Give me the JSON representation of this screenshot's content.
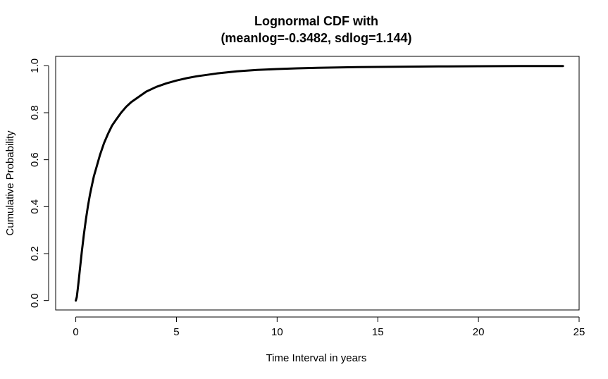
{
  "chart_data": {
    "type": "line",
    "title": "Lognormal CDF with",
    "subtitle": "(meanlog=-0.3482, sdlog=1.144)",
    "xlabel": "Time Interval in years",
    "ylabel": "Cumulative Probability",
    "xlim": [
      -1,
      25
    ],
    "ylim": [
      -0.04,
      1.04
    ],
    "x_ticks": [
      0,
      5,
      10,
      15,
      20,
      25
    ],
    "x_tick_labels": [
      "0",
      "5",
      "10",
      "15",
      "20",
      "25"
    ],
    "y_ticks": [
      0.0,
      0.2,
      0.4,
      0.6,
      0.8,
      1.0
    ],
    "y_tick_labels": [
      "0.0",
      "0.2",
      "0.4",
      "0.6",
      "0.8",
      "1.0"
    ],
    "grid": false,
    "series": [
      {
        "color": "#000000",
        "x": [
          0,
          0.05,
          0.1,
          0.15,
          0.2,
          0.3,
          0.4,
          0.5,
          0.6,
          0.7,
          0.8,
          0.9,
          1.0,
          1.2,
          1.4,
          1.6,
          1.8,
          2.0,
          2.25,
          2.5,
          2.75,
          3.0,
          3.5,
          4.0,
          4.5,
          5.0,
          5.5,
          6.0,
          7.0,
          8.0,
          9.0,
          10.0,
          11.0,
          12.0,
          13.0,
          14.0,
          16.0,
          18.0,
          20.0,
          22.0,
          24.2
        ],
        "y": [
          0.0,
          0.015,
          0.05,
          0.09,
          0.13,
          0.21,
          0.28,
          0.345,
          0.4,
          0.45,
          0.49,
          0.53,
          0.56,
          0.62,
          0.67,
          0.71,
          0.745,
          0.77,
          0.8,
          0.825,
          0.845,
          0.86,
          0.89,
          0.91,
          0.925,
          0.937,
          0.947,
          0.955,
          0.967,
          0.976,
          0.982,
          0.986,
          0.989,
          0.991,
          0.993,
          0.994,
          0.996,
          0.997,
          0.998,
          0.999,
          0.999
        ]
      }
    ]
  }
}
